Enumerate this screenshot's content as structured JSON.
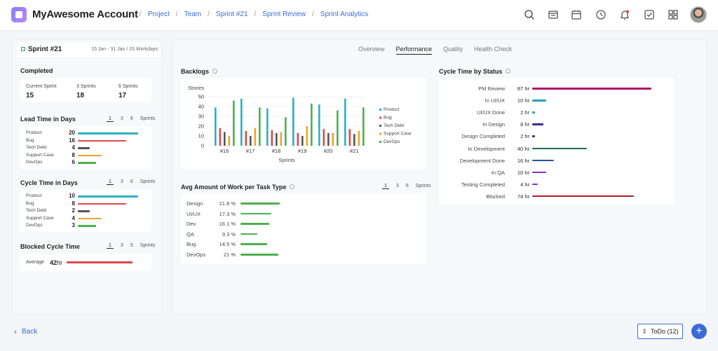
{
  "header": {
    "account": "MyAwesome Account",
    "breadcrumb": [
      "Project",
      "Team",
      "Sprint #21",
      "Sprint Review",
      "Sprint Analytics"
    ]
  },
  "sprint": {
    "name": "Sprint #21",
    "dates": "15 Jan - 31 Jan / 15 Workdays"
  },
  "completed": {
    "title": "Completed",
    "labels": [
      "Current Sprint",
      "3 Sprints",
      "6 Sprints"
    ],
    "values": [
      "15",
      "18",
      "17"
    ]
  },
  "sprint_toggle": {
    "options": [
      "1",
      "3",
      "6"
    ],
    "suffix": "Sprints"
  },
  "lead_time": {
    "title": "Lead Time in Days",
    "rows": [
      {
        "label": "Product",
        "value": "20",
        "frac": 1.0,
        "color": "#2ab0c6"
      },
      {
        "label": "Bug",
        "value": "16",
        "frac": 0.8,
        "color": "#e04848"
      },
      {
        "label": "Tech Debt",
        "value": "4",
        "frac": 0.2,
        "color": "#555555"
      },
      {
        "label": "Support Case",
        "value": "8",
        "frac": 0.4,
        "color": "#f2a327"
      },
      {
        "label": "DevOps",
        "value": "6",
        "frac": 0.3,
        "color": "#4caf50"
      }
    ]
  },
  "cycle_time": {
    "title": "Cycle Time in Days",
    "rows": [
      {
        "label": "Product",
        "value": "10",
        "frac": 1.0,
        "color": "#2ab0c6"
      },
      {
        "label": "Bug",
        "value": "8",
        "frac": 0.8,
        "color": "#e04848"
      },
      {
        "label": "Tech Debt",
        "value": "2",
        "frac": 0.2,
        "color": "#555555"
      },
      {
        "label": "Support Case",
        "value": "4",
        "frac": 0.4,
        "color": "#f2a327"
      },
      {
        "label": "DevOps",
        "value": "3",
        "frac": 0.3,
        "color": "#4caf50"
      }
    ]
  },
  "blocked": {
    "title": "Blocked Cycle Time",
    "label": "Average",
    "value": "42",
    "unit": "hr",
    "color": "#e04848"
  },
  "tabs": [
    "Overview",
    "Performance",
    "Quality",
    "Health Check"
  ],
  "backlogs": {
    "title": "Backlogs",
    "ylabel": "Stories",
    "xlabel": "Sprints"
  },
  "chart_data": {
    "type": "bar",
    "categories": [
      "#16",
      "#17",
      "#18",
      "#19",
      "#20",
      "#21"
    ],
    "series": [
      {
        "name": "Product",
        "color": "#2ab0c6",
        "values": [
          39,
          48,
          38,
          49,
          42,
          48
        ]
      },
      {
        "name": "Bug",
        "color": "#e04848",
        "values": [
          18,
          15,
          16,
          13,
          17,
          17
        ]
      },
      {
        "name": "Tech Debt",
        "color": "#555555",
        "values": [
          14,
          10,
          13,
          10,
          13,
          12
        ]
      },
      {
        "name": "Support Case",
        "color": "#f2a327",
        "values": [
          10,
          18,
          14,
          20,
          13,
          15
        ]
      },
      {
        "name": "DevOps",
        "color": "#4caf50",
        "values": [
          46,
          39,
          29,
          43,
          36,
          39
        ]
      }
    ],
    "ylim": [
      0,
      50
    ],
    "yticks": [
      0,
      10,
      20,
      30,
      40,
      50
    ],
    "legend": "right"
  },
  "work": {
    "title": "Avg Amount of Work per Task Type",
    "rows": [
      {
        "label": "Design",
        "value": "21.8 %",
        "frac": 1.0
      },
      {
        "label": "UI/UX",
        "value": "17.3 %",
        "frac": 0.79
      },
      {
        "label": "Dev",
        "value": "16.1 %",
        "frac": 0.74
      },
      {
        "label": "QA",
        "value": "9.3 %",
        "frac": 0.43
      },
      {
        "label": "Bug",
        "value": "14.5 %",
        "frac": 0.67
      },
      {
        "label": "DevOps",
        "value": "21 %",
        "frac": 0.96
      }
    ],
    "color": "#4caf50"
  },
  "status": {
    "title": "Cycle Time by Status",
    "rows": [
      {
        "label": "PM Review",
        "value": "87 hr",
        "frac": 1.0,
        "color": "#b0176a"
      },
      {
        "label": "In UI/UX",
        "value": "10 hr",
        "frac": 0.115,
        "color": "#2a9fb5"
      },
      {
        "label": "UI/UX Done",
        "value": "2 hr",
        "frac": 0.025,
        "color": "#2a9fb5"
      },
      {
        "label": "In Design",
        "value": "8 hr",
        "frac": 0.092,
        "color": "#3a2f8f"
      },
      {
        "label": "Design Completed",
        "value": "2 hr",
        "frac": 0.025,
        "color": "#3a2f8f"
      },
      {
        "label": "In Development",
        "value": "40 hr",
        "frac": 0.46,
        "color": "#1e6b5a"
      },
      {
        "label": "Development Done",
        "value": "16 hr",
        "frac": 0.184,
        "color": "#2553a8"
      },
      {
        "label": "In QA",
        "value": "10 hr",
        "frac": 0.115,
        "color": "#8a2fc4"
      },
      {
        "label": "Testing Completed",
        "value": "4 hr",
        "frac": 0.046,
        "color": "#8a2fc4"
      },
      {
        "label": "Blocked",
        "value": "74 hr",
        "frac": 0.85,
        "color": "#b01c2a"
      }
    ]
  },
  "footer": {
    "back": "Back",
    "todo": "ToDo (12)"
  }
}
